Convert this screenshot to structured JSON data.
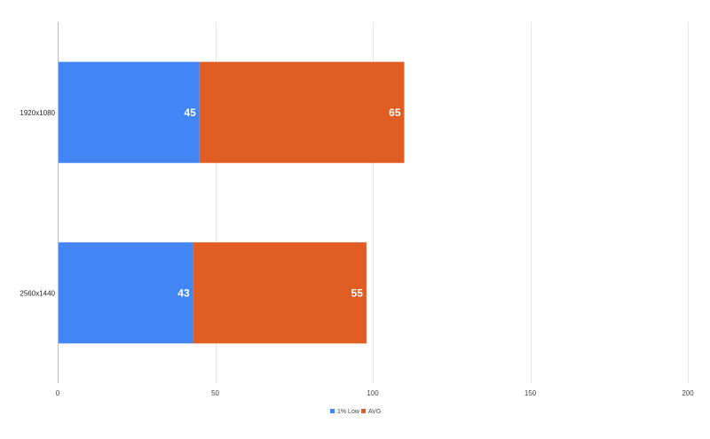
{
  "chart_data": {
    "type": "bar",
    "orientation": "horizontal",
    "stacked": true,
    "categories": [
      "1920x1080",
      "2560x1440"
    ],
    "series": [
      {
        "name": "1% Low",
        "values": [
          45,
          43
        ],
        "color": "#4285f4"
      },
      {
        "name": "AVG",
        "values": [
          65,
          55
        ],
        "color": "#e05d24"
      }
    ],
    "xlim": [
      0,
      200
    ],
    "xticks": [
      0,
      50,
      100,
      150,
      200
    ],
    "grid": true,
    "legend": "bottom"
  }
}
